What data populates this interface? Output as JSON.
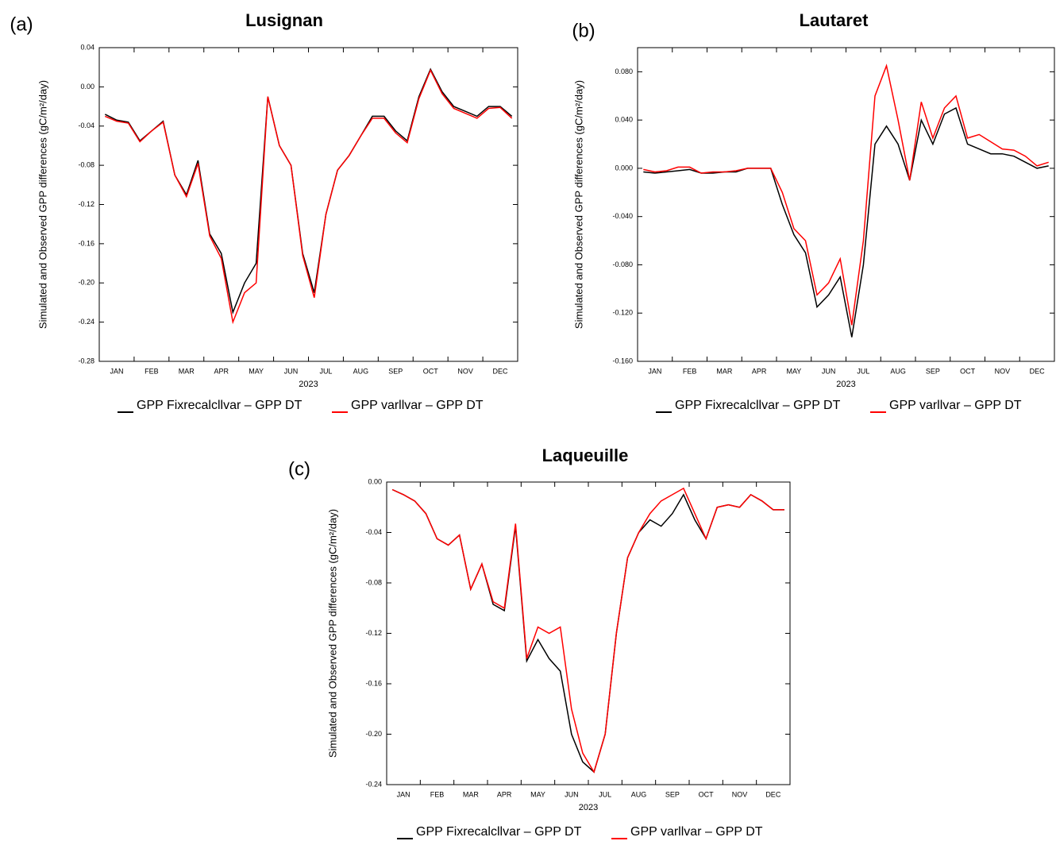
{
  "chart_data": [
    {
      "type": "line",
      "panel_label": "(a)",
      "title": "Lusignan",
      "x_label": "2023",
      "y_label": "Simulated and Observed GPP differences (gC/m²/day)",
      "categories": [
        null,
        "JAN",
        null,
        null,
        "FEB",
        null,
        null,
        "MAR",
        null,
        null,
        "APR",
        null,
        null,
        "MAY",
        null,
        null,
        "JUN",
        null,
        null,
        "JUL",
        null,
        null,
        "AUG",
        null,
        null,
        "SEP",
        null,
        null,
        "OCT",
        null,
        null,
        "NOV",
        null,
        null,
        "DEC",
        null
      ],
      "ylim": [
        -0.28,
        0.04
      ],
      "yticks": [
        0.04,
        {
          "value": 0,
          "label": "0.00"
        },
        -0.04,
        -0.08,
        -0.12,
        -0.16,
        {
          "value": -0.2,
          "label": "-0.20"
        },
        -0.24,
        -0.28
      ],
      "series": [
        {
          "name": "GPP Fixrecalcllvar – GPP DT",
          "color": "#000000",
          "values": [
            -0.028,
            -0.034,
            -0.036,
            -0.055,
            -0.045,
            -0.035,
            -0.09,
            -0.11,
            -0.075,
            -0.15,
            -0.17,
            -0.23,
            -0.2,
            -0.18,
            -0.01,
            -0.06,
            -0.08,
            -0.17,
            -0.21,
            -0.13,
            -0.085,
            -0.07,
            -0.05,
            -0.03,
            -0.03,
            -0.045,
            -0.055,
            -0.01,
            0.018,
            -0.005,
            -0.02,
            -0.025,
            -0.03,
            -0.02,
            -0.02,
            -0.03
          ]
        },
        {
          "name": "GPP varllvar – GPP DT",
          "color": "#ff0000",
          "values": [
            -0.03,
            -0.035,
            -0.037,
            -0.056,
            -0.045,
            -0.036,
            -0.09,
            -0.112,
            -0.078,
            -0.152,
            -0.175,
            -0.24,
            -0.21,
            -0.2,
            -0.01,
            -0.06,
            -0.08,
            -0.172,
            -0.215,
            -0.13,
            -0.085,
            -0.07,
            -0.05,
            -0.032,
            -0.032,
            -0.047,
            -0.057,
            -0.012,
            0.017,
            -0.007,
            -0.022,
            -0.027,
            -0.032,
            -0.022,
            -0.021,
            -0.032
          ]
        }
      ]
    },
    {
      "type": "line",
      "panel_label": "(b)",
      "title": "Lautaret",
      "x_label": "2023",
      "y_label": "Simulated and Observed GPP differences (gC/m²/day)",
      "categories": [
        null,
        "JAN",
        null,
        null,
        "FEB",
        null,
        null,
        "MAR",
        null,
        null,
        "APR",
        null,
        null,
        "MAY",
        null,
        null,
        "JUN",
        null,
        null,
        "JUL",
        null,
        null,
        "AUG",
        null,
        null,
        "SEP",
        null,
        null,
        "OCT",
        null,
        null,
        "NOV",
        null,
        null,
        "DEC",
        null
      ],
      "ylim": [
        -0.16,
        0.1
      ],
      "yticks": [
        {
          "value": 0.08,
          "label": "0.080"
        },
        {
          "value": 0.04,
          "label": "0.040"
        },
        {
          "value": 0,
          "label": "0.000"
        },
        {
          "value": -0.04,
          "label": "-0.040"
        },
        {
          "value": -0.08,
          "label": "-0.080"
        },
        {
          "value": -0.12,
          "label": "-0.120"
        },
        {
          "value": -0.16,
          "label": "-0.160"
        }
      ],
      "series": [
        {
          "name": "GPP Fixrecalcllvar – GPP DT",
          "color": "#000000",
          "values": [
            -0.003,
            -0.004,
            -0.003,
            -0.002,
            -0.001,
            -0.004,
            -0.004,
            -0.003,
            -0.003,
            0,
            0,
            0,
            -0.03,
            -0.055,
            -0.07,
            -0.115,
            -0.105,
            -0.09,
            -0.14,
            -0.08,
            0.02,
            0.035,
            0.02,
            -0.01,
            0.04,
            0.02,
            0.045,
            0.05,
            0.02,
            0.016,
            0.012,
            0.012,
            0.01,
            0.005,
            0,
            0.002
          ]
        },
        {
          "name": "GPP varllvar – GPP DT",
          "color": "#ff0000",
          "values": [
            -0.001,
            -0.003,
            -0.002,
            0.001,
            0.001,
            -0.004,
            -0.003,
            -0.003,
            -0.002,
            0,
            0,
            0,
            -0.02,
            -0.05,
            -0.06,
            -0.105,
            -0.095,
            -0.075,
            -0.13,
            -0.06,
            0.06,
            0.085,
            0.04,
            -0.01,
            0.055,
            0.025,
            0.05,
            0.06,
            0.025,
            0.028,
            0.022,
            0.016,
            0.015,
            0.01,
            0.002,
            0.005
          ]
        }
      ]
    },
    {
      "type": "line",
      "panel_label": "(c)",
      "title": "Laqueuille",
      "x_label": "2023",
      "y_label": "Simulated and Observed GPP differences (gC/m²/day)",
      "categories": [
        null,
        "JAN",
        null,
        null,
        "FEB",
        null,
        null,
        "MAR",
        null,
        null,
        "APR",
        null,
        null,
        "MAY",
        null,
        null,
        "JUN",
        null,
        null,
        "JUL",
        null,
        null,
        "AUG",
        null,
        null,
        "SEP",
        null,
        null,
        "OCT",
        null,
        null,
        "NOV",
        null,
        null,
        "DEC",
        null
      ],
      "ylim": [
        -0.24,
        0
      ],
      "yticks": [
        {
          "value": 0,
          "label": "0.00"
        },
        -0.04,
        -0.08,
        -0.12,
        -0.16,
        {
          "value": -0.2,
          "label": "-0.20"
        },
        -0.24
      ],
      "series": [
        {
          "name": "GPP Fixrecalcllvar – GPP DT",
          "color": "#000000",
          "values": [
            -0.006,
            -0.01,
            -0.015,
            -0.025,
            -0.045,
            -0.05,
            -0.042,
            -0.085,
            -0.065,
            -0.097,
            -0.102,
            -0.035,
            -0.142,
            -0.125,
            -0.14,
            -0.15,
            -0.2,
            -0.222,
            -0.23,
            -0.2,
            -0.12,
            -0.06,
            -0.04,
            -0.03,
            -0.035,
            -0.025,
            -0.01,
            -0.03,
            -0.045,
            -0.02,
            -0.018,
            -0.02,
            -0.01,
            -0.015,
            -0.022,
            -0.022
          ]
        },
        {
          "name": "GPP varllvar – GPP DT",
          "color": "#ff0000",
          "values": [
            -0.006,
            -0.01,
            -0.015,
            -0.025,
            -0.045,
            -0.05,
            -0.042,
            -0.085,
            -0.065,
            -0.095,
            -0.1,
            -0.033,
            -0.14,
            -0.115,
            -0.12,
            -0.115,
            -0.18,
            -0.215,
            -0.23,
            -0.2,
            -0.12,
            -0.06,
            -0.04,
            -0.025,
            -0.015,
            -0.01,
            -0.005,
            -0.025,
            -0.045,
            -0.02,
            -0.018,
            -0.02,
            -0.01,
            -0.015,
            -0.022,
            -0.022
          ]
        }
      ]
    }
  ]
}
